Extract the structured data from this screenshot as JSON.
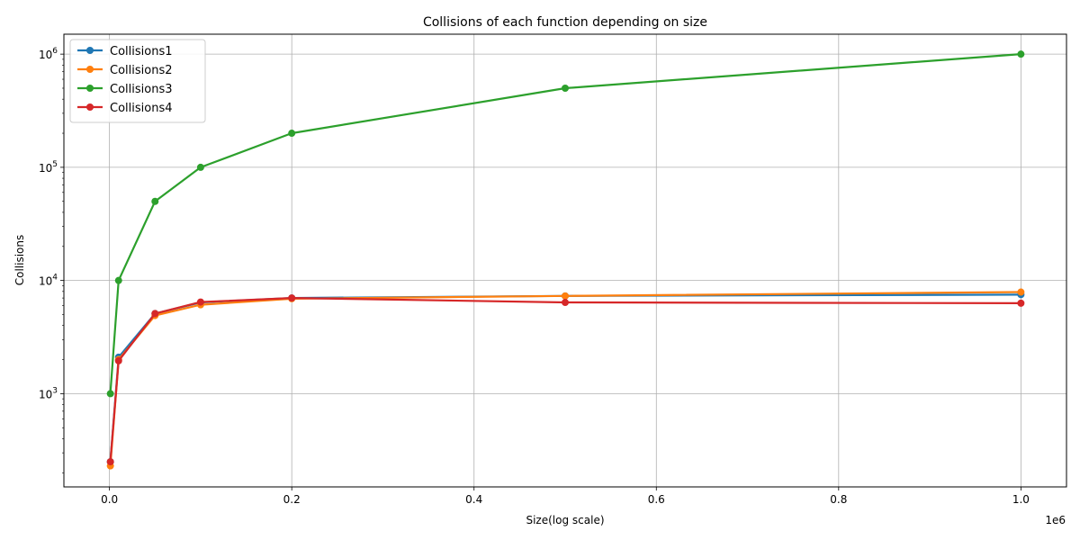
{
  "chart_data": {
    "type": "line",
    "title": "Collisions of each function depending on size",
    "xlabel": "Size(log scale)",
    "ylabel": "Collisions",
    "x_offset_label": "1e6",
    "yscale": "log",
    "xlim": [
      -50000,
      1050000
    ],
    "ylim": [
      150,
      1500000
    ],
    "grid": true,
    "legend_position": "top-left",
    "x_ticks": [
      {
        "value": 0,
        "label": "0.0"
      },
      {
        "value": 200000,
        "label": "0.2"
      },
      {
        "value": 400000,
        "label": "0.4"
      },
      {
        "value": 600000,
        "label": "0.6"
      },
      {
        "value": 800000,
        "label": "0.8"
      },
      {
        "value": 1000000,
        "label": "1.0"
      }
    ],
    "y_ticks": [
      {
        "value": 1000,
        "base": "10",
        "exp": "3"
      },
      {
        "value": 10000,
        "base": "10",
        "exp": "4"
      },
      {
        "value": 100000,
        "base": "10",
        "exp": "5"
      },
      {
        "value": 1000000,
        "base": "10",
        "exp": "6"
      }
    ],
    "x": [
      1000,
      10000,
      50000,
      100000,
      200000,
      500000,
      1000000
    ],
    "series": [
      {
        "name": "Collisions1",
        "color": "#1f77b4",
        "values": [
          250,
          2100,
          5100,
          6400,
          7000,
          7300,
          7500
        ]
      },
      {
        "name": "Collisions2",
        "color": "#ff7f0e",
        "values": [
          230,
          2000,
          4900,
          6100,
          6900,
          7300,
          7900
        ]
      },
      {
        "name": "Collisions3",
        "color": "#2ca02c",
        "values": [
          1000,
          10000,
          50000,
          100000,
          200000,
          500000,
          1000000
        ]
      },
      {
        "name": "Collisions4",
        "color": "#d62728",
        "values": [
          250,
          1950,
          5100,
          6450,
          7000,
          6400,
          6300
        ]
      }
    ]
  }
}
